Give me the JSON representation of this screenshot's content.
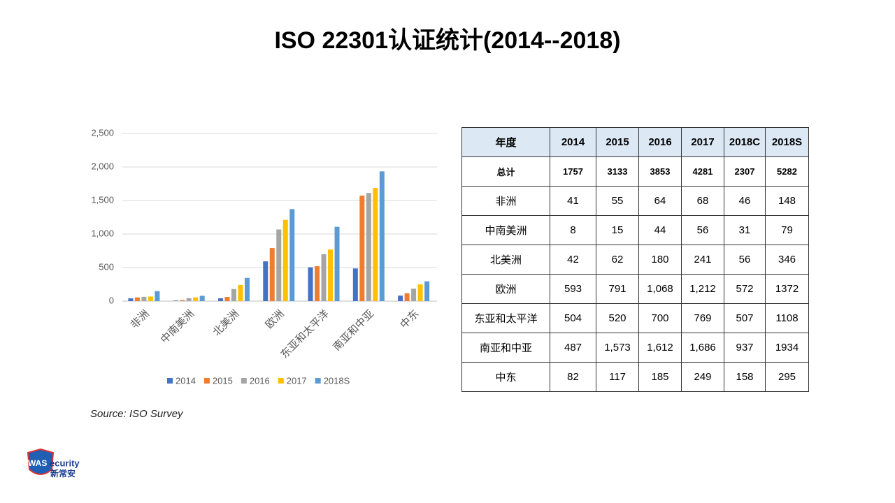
{
  "title": "ISO 22301认证统计(2014--2018)",
  "chart_data": {
    "type": "bar",
    "categories": [
      "非洲",
      "中南美洲",
      "北美洲",
      "欧洲",
      "东亚和太平洋",
      "南亚和中亚",
      "中东"
    ],
    "series": [
      {
        "name": "2014",
        "color": "#4472c4",
        "values": [
          41,
          8,
          42,
          593,
          504,
          487,
          82
        ]
      },
      {
        "name": "2015",
        "color": "#ed7d31",
        "values": [
          55,
          15,
          62,
          791,
          520,
          1573,
          117
        ]
      },
      {
        "name": "2016",
        "color": "#a5a5a5",
        "values": [
          64,
          44,
          180,
          1068,
          700,
          1612,
          185
        ]
      },
      {
        "name": "2017",
        "color": "#ffc000",
        "values": [
          68,
          56,
          241,
          1212,
          769,
          1686,
          249
        ]
      },
      {
        "name": "2018S",
        "color": "#5b9bd5",
        "values": [
          148,
          79,
          346,
          1372,
          1108,
          1934,
          295
        ]
      }
    ],
    "ylim": [
      0,
      2500
    ],
    "yticks": [
      0,
      500,
      {
        "value": 1000,
        "label": "1,000"
      },
      {
        "value": 1500,
        "label": "1,500"
      },
      {
        "value": 2000,
        "label": "2,000"
      },
      {
        "value": 2500,
        "label": "2,500"
      }
    ],
    "grid": true,
    "legend": "bottom"
  },
  "table": {
    "header": [
      "年度",
      "2014",
      "2015",
      "2016",
      "2017",
      "2018C",
      "2018S"
    ],
    "rows": [
      [
        "总计",
        "1757",
        "3133",
        "3853",
        "4281",
        "2307",
        "5282"
      ],
      [
        "非洲",
        "41",
        "55",
        "64",
        "68",
        "46",
        "148"
      ],
      [
        "中南美洲",
        "8",
        "15",
        "44",
        "56",
        "31",
        "79"
      ],
      [
        "北美洲",
        "42",
        "62",
        "180",
        "241",
        "56",
        "346"
      ],
      [
        "欧洲",
        "593",
        "791",
        "1,068",
        "1,212",
        "572",
        "1372"
      ],
      [
        "东亚和太平洋",
        "504",
        "520",
        "700",
        "769",
        "507",
        "1108"
      ],
      [
        "南亚和中亚",
        "487",
        "1,573",
        "1,612",
        "1,686",
        "937",
        "1934"
      ],
      [
        "中东",
        "82",
        "117",
        "185",
        "249",
        "158",
        "295"
      ]
    ]
  },
  "source": "Source: ISO Survey",
  "logo": {
    "mark": "WAS",
    "text": "ecurity",
    "cn": "新常安"
  }
}
